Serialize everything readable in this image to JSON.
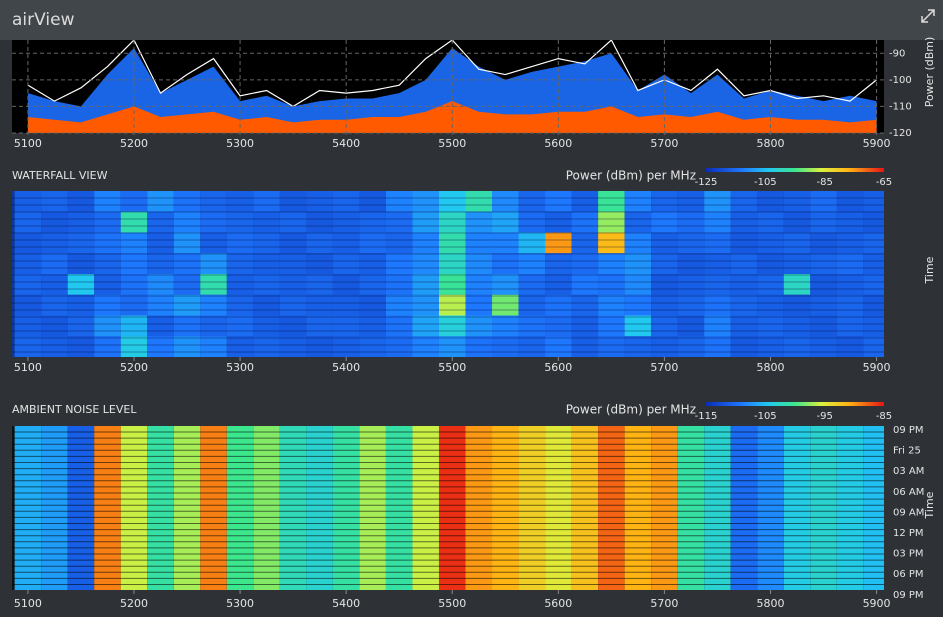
{
  "header": {
    "title": "airView"
  },
  "chart_data": [
    {
      "type": "area",
      "y_label": "Power (dBm)",
      "x": [
        5100,
        5125,
        5150,
        5175,
        5200,
        5225,
        5250,
        5275,
        5300,
        5325,
        5350,
        5375,
        5400,
        5425,
        5450,
        5475,
        5500,
        5525,
        5550,
        5575,
        5600,
        5625,
        5650,
        5675,
        5700,
        5725,
        5750,
        5775,
        5800,
        5825,
        5850,
        5875,
        5900
      ],
      "series": [
        {
          "color": "#1a64e6",
          "values": [
            -105,
            -108,
            -110,
            -98,
            -88,
            -105,
            -100,
            -95,
            -108,
            -106,
            -110,
            -108,
            -107,
            -107,
            -105,
            -100,
            -88,
            -95,
            -100,
            -97,
            -95,
            -93,
            -90,
            -104,
            -98,
            -105,
            -98,
            -107,
            -104,
            -106,
            -108,
            -106,
            -108
          ]
        },
        {
          "color": "#ff5a00",
          "values": [
            -114,
            -115,
            -116,
            -113,
            -110,
            -114,
            -113,
            -112,
            -115,
            -114,
            -116,
            -115,
            -115,
            -114,
            -114,
            -112,
            -108,
            -112,
            -113,
            -113,
            -112,
            -112,
            -110,
            -114,
            -113,
            -114,
            -112,
            -115,
            -114,
            -115,
            -115,
            -116,
            -115
          ]
        },
        {
          "color": "#ffffff",
          "line": true,
          "values": [
            -102,
            -108,
            -103,
            -95,
            -85,
            -105,
            -98,
            -92,
            -106,
            -104,
            -110,
            -104,
            -105,
            -104,
            -102,
            -92,
            -85,
            -96,
            -98,
            -95,
            -92,
            -94,
            -85,
            -104,
            -100,
            -104,
            -96,
            -106,
            -104,
            -107,
            -106,
            -108,
            -100
          ]
        }
      ],
      "xlim": [
        5085,
        5907
      ],
      "xticks": [
        5100,
        5200,
        5300,
        5400,
        5500,
        5600,
        5700,
        5800,
        5900
      ],
      "ylim": [
        -120,
        -85
      ],
      "yticks": [
        -90,
        -100,
        -110,
        -120
      ],
      "grid": true
    },
    {
      "type": "heatmap",
      "title": "WATERFALL VIEW",
      "legend_title": "Power (dBm) per MHz",
      "y_label": "Time",
      "x": [
        5100,
        5125,
        5150,
        5175,
        5200,
        5225,
        5250,
        5275,
        5300,
        5325,
        5350,
        5375,
        5400,
        5425,
        5450,
        5475,
        5500,
        5525,
        5550,
        5575,
        5600,
        5625,
        5650,
        5675,
        5700,
        5725,
        5750,
        5775,
        5800,
        5825,
        5850,
        5875,
        5900
      ],
      "z": [
        [
          -117,
          -116,
          -118,
          -112,
          -115,
          -110,
          -114,
          -116,
          -117,
          -115,
          -118,
          -117,
          -116,
          -118,
          -112,
          -110,
          -104,
          -98,
          -111,
          -116,
          -113,
          -117,
          -96,
          -112,
          -116,
          -117,
          -110,
          -116,
          -118,
          -117,
          -115,
          -118,
          -117
        ],
        [
          -116,
          -118,
          -117,
          -115,
          -98,
          -116,
          -112,
          -115,
          -116,
          -117,
          -116,
          -118,
          -117,
          -116,
          -115,
          -109,
          -100,
          -110,
          -108,
          -115,
          -117,
          -114,
          -90,
          -116,
          -113,
          -115,
          -112,
          -117,
          -116,
          -118,
          -116,
          -117,
          -118
        ],
        [
          -118,
          -117,
          -116,
          -114,
          -112,
          -117,
          -110,
          -117,
          -115,
          -116,
          -118,
          -116,
          -117,
          -115,
          -116,
          -112,
          -98,
          -112,
          -112,
          -106,
          -75,
          -116,
          -78,
          -112,
          -117,
          -116,
          -115,
          -118,
          -117,
          -116,
          -118,
          -117,
          -116
        ],
        [
          -117,
          -115,
          -118,
          -116,
          -113,
          -116,
          -114,
          -110,
          -116,
          -117,
          -117,
          -118,
          -116,
          -117,
          -113,
          -111,
          -100,
          -111,
          -114,
          -112,
          -116,
          -115,
          -112,
          -110,
          -116,
          -118,
          -117,
          -116,
          -118,
          -117,
          -116,
          -115,
          -117
        ],
        [
          -116,
          -117,
          -104,
          -117,
          -114,
          -111,
          -115,
          -98,
          -117,
          -116,
          -117,
          -116,
          -118,
          -116,
          -114,
          -109,
          -96,
          -112,
          -110,
          -115,
          -117,
          -113,
          -114,
          -111,
          -118,
          -117,
          -116,
          -117,
          -116,
          -100,
          -118,
          -117,
          -116
        ],
        [
          -118,
          -116,
          -117,
          -113,
          -115,
          -112,
          -109,
          -112,
          -116,
          -118,
          -116,
          -117,
          -117,
          -118,
          -112,
          -110,
          -88,
          -113,
          -92,
          -116,
          -114,
          -116,
          -112,
          -113,
          -117,
          -116,
          -114,
          -116,
          -117,
          -118,
          -117,
          -116,
          -118
        ],
        [
          -117,
          -118,
          -116,
          -110,
          -106,
          -117,
          -114,
          -116,
          -115,
          -117,
          -118,
          -116,
          -116,
          -117,
          -114,
          -108,
          -102,
          -110,
          -112,
          -114,
          -115,
          -117,
          -113,
          -104,
          -116,
          -118,
          -112,
          -117,
          -116,
          -117,
          -118,
          -116,
          -117
        ],
        [
          -116,
          -117,
          -118,
          -114,
          -103,
          -113,
          -110,
          -112,
          -117,
          -116,
          -117,
          -118,
          -117,
          -116,
          -115,
          -112,
          -110,
          -114,
          -115,
          -116,
          -113,
          -117,
          -115,
          -116,
          -117,
          -116,
          -114,
          -118,
          -117,
          -116,
          -117,
          -118,
          -116
        ]
      ],
      "xlim": [
        5085,
        5907
      ],
      "xticks": [
        5100,
        5200,
        5300,
        5400,
        5500,
        5600,
        5700,
        5800,
        5900
      ],
      "clim": [
        -125,
        -65
      ],
      "cticks": [
        -125,
        -105,
        -85,
        -65
      ]
    },
    {
      "type": "heatmap",
      "title": "AMBIENT NOISE LEVEL",
      "legend_title": "Power (dBm) per MHz",
      "y_label": "Time",
      "x": [
        5100,
        5125,
        5150,
        5175,
        5200,
        5225,
        5250,
        5275,
        5300,
        5325,
        5350,
        5375,
        5400,
        5425,
        5450,
        5475,
        5500,
        5525,
        5550,
        5575,
        5600,
        5625,
        5650,
        5675,
        5700,
        5725,
        5750,
        5775,
        5800,
        5825,
        5850,
        5875,
        5900
      ],
      "values": [
        -106,
        -107,
        -111,
        -89,
        -96,
        -101,
        -97,
        -89,
        -100,
        -98,
        -102,
        -103,
        -101,
        -97,
        -101,
        -96,
        -86,
        -90,
        -91,
        -93,
        -95,
        -92,
        -88,
        -91,
        -90,
        -101,
        -103,
        -110,
        -108,
        -104,
        -103,
        -104,
        -105
      ],
      "y_categories": [
        "09 PM",
        "Fri 25",
        "03 AM",
        "06 AM",
        "09 AM",
        "12 PM",
        "03 PM",
        "06 PM",
        "09 PM"
      ],
      "xlim": [
        5085,
        5907
      ],
      "xticks": [
        5100,
        5200,
        5300,
        5400,
        5500,
        5600,
        5700,
        5800,
        5900
      ],
      "clim": [
        -115,
        -85
      ],
      "cticks": [
        -115,
        -105,
        -95,
        -85
      ]
    }
  ]
}
